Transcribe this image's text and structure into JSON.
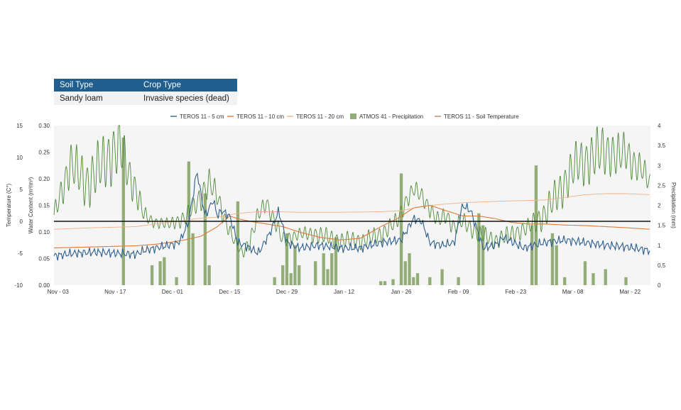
{
  "info_table": {
    "headers": [
      "Soil Type",
      "Crop Type"
    ],
    "values": [
      "Sandy loam",
      "Invasive species (dead)"
    ]
  },
  "chart_data": {
    "type": "line",
    "title": "",
    "xlabel": "",
    "ylabels": {
      "temperature": "Temperature (C°)",
      "water_content": "Water Content (m³/m³)",
      "precipitation": "Precipitation (mm)"
    },
    "axes": {
      "temperature": {
        "ticks": [
          15,
          10,
          5,
          0,
          -5,
          -10
        ],
        "ylim": [
          -10,
          15
        ]
      },
      "water_content": {
        "ticks": [
          "0.30",
          "0.25",
          "0.20",
          "0.15",
          "0.10",
          "0.05",
          "0.00"
        ],
        "ylim": [
          0,
          0.3
        ]
      },
      "precipitation": {
        "ticks": [
          "4",
          "3.5",
          "3",
          "2.5",
          "2",
          "1.5",
          "1",
          "0.5",
          "0"
        ],
        "ylim": [
          0,
          4
        ]
      }
    },
    "x_tick_labels": [
      "Nov - 03",
      "Nov - 17",
      "Dec - 01",
      "Dec - 15",
      "Dec - 29",
      "Jan - 12",
      "Jan - 26",
      "Feb - 09",
      "Feb - 23",
      "Mar - 08",
      "Mar - 22"
    ],
    "x_range_days": [
      0,
      146
    ],
    "x_ticks_days": [
      1,
      15,
      29,
      43,
      57,
      71,
      85,
      99,
      113,
      127,
      141
    ],
    "legend": [
      {
        "name": "TEROS 11 - 5 cm",
        "color": "#2e5f8f",
        "marker": "line"
      },
      {
        "name": "TEROS 11 - 10 cm",
        "color": "#e07b39",
        "marker": "line"
      },
      {
        "name": "TEROS 11 - 20 cm",
        "color": "#f4b183",
        "marker": "line"
      },
      {
        "name": "ATMOS 41 - Precipitation",
        "color": "#92ad77",
        "marker": "box"
      },
      {
        "name": "TEROS 11 - Soil Temperature",
        "color": "#c9826a",
        "marker": "line"
      }
    ],
    "legend_position": "top",
    "grid": false,
    "zero_temperature_line": 0,
    "series": [
      {
        "name": "TEROS 11 - 5 cm",
        "axis": "water_content",
        "x": [
          0,
          5,
          10,
          15,
          20,
          22,
          25,
          28,
          30,
          31,
          33,
          35,
          36,
          37,
          39,
          40,
          41,
          43,
          45,
          48,
          50,
          53,
          55,
          57,
          60,
          65,
          70,
          75,
          80,
          85,
          88,
          90,
          92,
          95,
          98,
          100,
          102,
          105,
          108,
          110,
          115,
          120,
          125,
          130,
          135,
          140,
          146
        ],
        "y": [
          0.055,
          0.06,
          0.062,
          0.06,
          0.058,
          0.065,
          0.07,
          0.075,
          0.078,
          0.085,
          0.12,
          0.215,
          0.17,
          0.13,
          0.16,
          0.13,
          0.14,
          0.13,
          0.08,
          0.07,
          0.06,
          0.1,
          0.14,
          0.08,
          0.07,
          0.075,
          0.07,
          0.07,
          0.08,
          0.085,
          0.125,
          0.12,
          0.08,
          0.075,
          0.08,
          0.15,
          0.14,
          0.07,
          0.075,
          0.09,
          0.07,
          0.08,
          0.085,
          0.08,
          0.075,
          0.072,
          0.065
        ]
      },
      {
        "name": "TEROS 11 - 10 cm",
        "axis": "water_content",
        "x": [
          0,
          10,
          20,
          25,
          28,
          32,
          36,
          40,
          43,
          45,
          48,
          52,
          56,
          60,
          65,
          70,
          75,
          80,
          84,
          88,
          92,
          96,
          100,
          104,
          108,
          112,
          116,
          120,
          125,
          130,
          135,
          140,
          146
        ],
        "y": [
          0.07,
          0.072,
          0.074,
          0.077,
          0.08,
          0.085,
          0.092,
          0.11,
          0.13,
          0.125,
          0.12,
          0.115,
          0.11,
          0.1,
          0.09,
          0.085,
          0.088,
          0.11,
          0.125,
          0.145,
          0.15,
          0.14,
          0.13,
          0.13,
          0.125,
          0.118,
          0.115,
          0.115,
          0.113,
          0.112,
          0.11,
          0.108,
          0.105
        ]
      },
      {
        "name": "TEROS 11 - 20 cm",
        "axis": "water_content",
        "x": [
          0,
          10,
          20,
          25,
          30,
          35,
          40,
          45,
          50,
          55,
          60,
          70,
          80,
          85,
          90,
          95,
          100,
          110,
          120,
          125,
          130,
          135,
          140,
          146
        ],
        "y": [
          0.105,
          0.108,
          0.11,
          0.115,
          0.12,
          0.125,
          0.128,
          0.135,
          0.138,
          0.138,
          0.137,
          0.137,
          0.138,
          0.14,
          0.148,
          0.152,
          0.155,
          0.158,
          0.16,
          0.165,
          0.17,
          0.172,
          0.172,
          0.17
        ]
      }
    ],
    "soil_temperature": {
      "name": "TEROS 11 - Soil Temperature",
      "axis": "temperature",
      "x": [
        0,
        4,
        8,
        12,
        16,
        18,
        20,
        22,
        24,
        28,
        32,
        34,
        36,
        38,
        40,
        42,
        44,
        46,
        48,
        50,
        52,
        54,
        56,
        60,
        64,
        70,
        76,
        80,
        84,
        86,
        88,
        90,
        92,
        94,
        96,
        98,
        100,
        104,
        108,
        112,
        116,
        120,
        124,
        128,
        132,
        134,
        136,
        138,
        140,
        142,
        144,
        146
      ],
      "mean": [
        1,
        9,
        6,
        9,
        12,
        8,
        5,
        1,
        0,
        -0.5,
        0.5,
        2,
        4,
        6,
        4,
        0,
        -3,
        -5,
        -3,
        1,
        3,
        0,
        -3,
        -2,
        -2,
        -3,
        -3,
        -2,
        0,
        3,
        5,
        4,
        2,
        0,
        1,
        -1,
        0,
        -2,
        -3,
        -2,
        -1,
        1,
        5,
        9,
        10,
        11,
        11,
        10,
        11,
        9,
        8,
        6
      ],
      "amplitude": [
        3,
        8,
        9,
        10,
        11,
        7,
        6,
        3,
        2,
        2,
        3,
        3,
        5,
        5,
        4,
        3,
        2,
        2,
        3,
        3,
        3,
        3,
        3,
        2,
        3,
        3,
        3,
        3,
        3,
        3,
        3,
        3,
        3,
        3,
        3,
        3,
        3,
        3,
        3,
        3,
        3,
        5,
        7,
        8,
        9,
        9,
        8,
        8,
        7,
        6,
        5,
        4
      ],
      "period_days": 1.3
    },
    "precipitation": {
      "name": "ATMOS 41 - Precipitation",
      "axis": "precipitation",
      "x": [
        17,
        24,
        26,
        27,
        30,
        33,
        34,
        37,
        38,
        45,
        54,
        56,
        57,
        58,
        59,
        60,
        64,
        66,
        67,
        68,
        69,
        80,
        81,
        83,
        85,
        86,
        87,
        88,
        89,
        92,
        95,
        99,
        104,
        105,
        117,
        118,
        122,
        123,
        125,
        130,
        132,
        135,
        140
      ],
      "values": [
        3.7,
        0.5,
        0.6,
        0.7,
        0.2,
        3.1,
        1.3,
        2.3,
        0.5,
        2.1,
        0.2,
        0.5,
        1.3,
        0.3,
        1.0,
        0.5,
        0.6,
        0.8,
        0.4,
        0.8,
        1.2,
        0.1,
        0.1,
        0.15,
        2.8,
        0.6,
        0.8,
        0.2,
        0.3,
        0.2,
        0.4,
        0.2,
        1.8,
        1.5,
        1.5,
        3.0,
        1.3,
        1.0,
        0.2,
        0.6,
        0.3,
        0.4,
        0.2
      ]
    }
  }
}
